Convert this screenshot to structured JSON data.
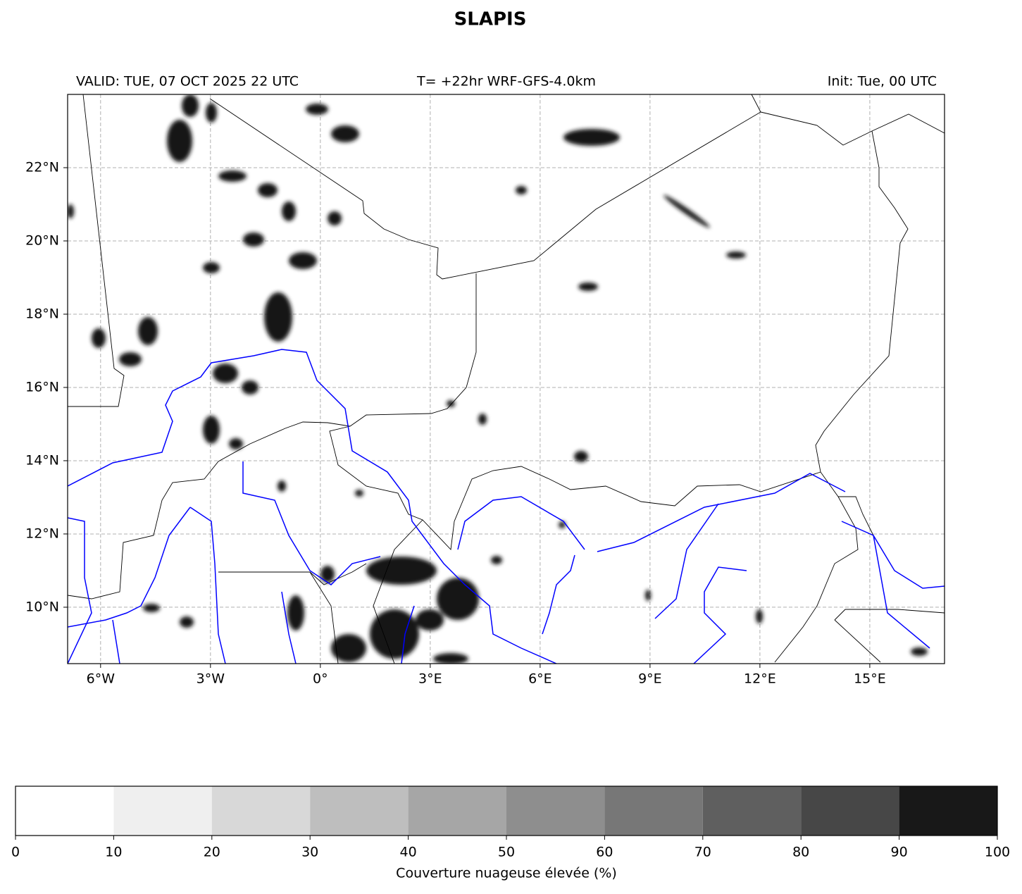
{
  "title": "SLAPIS",
  "valid": "VALID: TUE, 07 OCT 2025 22 UTC",
  "run": "T= +22hr WRF-GFS-4.0km",
  "init": "Init: Tue, 00 UTC",
  "map": {
    "xlim": [
      -6.9,
      17.04
    ],
    "ylim": [
      8.46,
      24
    ],
    "grid": true,
    "xticks": [
      {
        "value": -6,
        "label": "6°W"
      },
      {
        "value": -3,
        "label": "3°W"
      },
      {
        "value": 0,
        "label": "0°"
      },
      {
        "value": 3,
        "label": "3°E"
      },
      {
        "value": 6,
        "label": "6°E"
      },
      {
        "value": 9,
        "label": "9°E"
      },
      {
        "value": 12,
        "label": "12°E"
      },
      {
        "value": 15,
        "label": "15°E"
      }
    ],
    "yticks": [
      {
        "value": 10,
        "label": "10°N"
      },
      {
        "value": 12,
        "label": "12°N"
      },
      {
        "value": 14,
        "label": "14°N"
      },
      {
        "value": 16,
        "label": "16°N"
      },
      {
        "value": 18,
        "label": "18°N"
      },
      {
        "value": 20,
        "label": "20°N"
      },
      {
        "value": 22,
        "label": "22°N"
      }
    ]
  },
  "colorbar": {
    "ticks": [
      0,
      10,
      20,
      30,
      40,
      50,
      60,
      70,
      80,
      90,
      100
    ],
    "colors": [
      "#ffffff",
      "#efefef",
      "#d8d8d8",
      "#bebebe",
      "#a6a6a6",
      "#8e8e8e",
      "#777777",
      "#5f5f5f",
      "#474747",
      "#181818"
    ],
    "label": "Couverture nuageuse élevée (%)"
  }
}
